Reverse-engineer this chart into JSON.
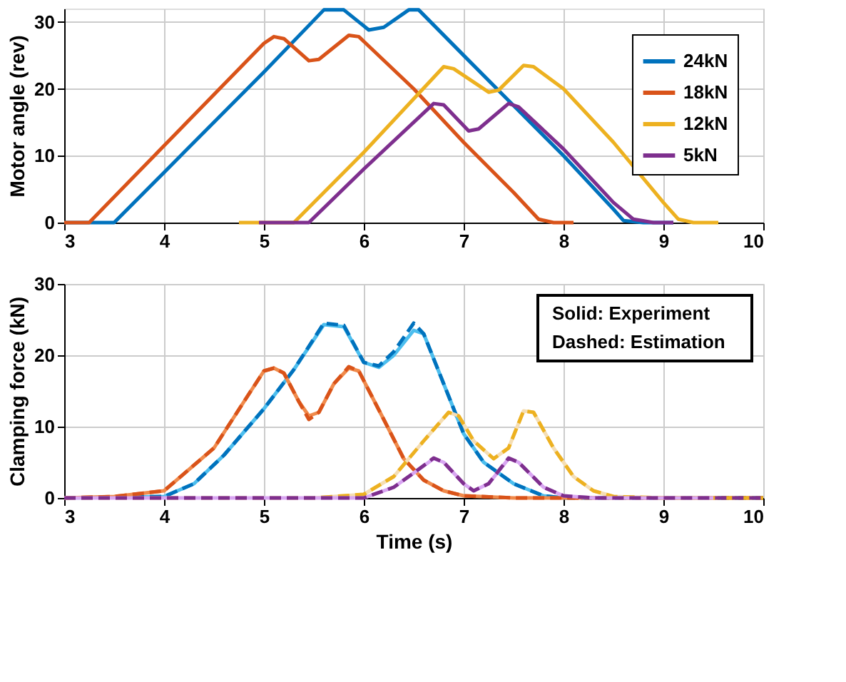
{
  "chart_data": [
    {
      "type": "line",
      "ylabel": "Motor angle (rev)",
      "xlim": [
        3,
        10
      ],
      "xticks": [
        3,
        4,
        5,
        6,
        7,
        8,
        9,
        10
      ],
      "ylim": [
        0,
        32
      ],
      "yticks": [
        0,
        10,
        20,
        30
      ],
      "grid": true,
      "legend": "top right",
      "marker": "none",
      "series": [
        {
          "name": "24kN",
          "color": "#0072bd",
          "line_style": "solid",
          "x": [
            3,
            3.5,
            4,
            5,
            5.6,
            5.8,
            6.05,
            6.2,
            6.45,
            6.55,
            7,
            7.5,
            8,
            8.5,
            8.6,
            8.8,
            9.1
          ],
          "values": [
            0,
            0,
            7.5,
            22.5,
            31.8,
            31.8,
            28.8,
            29.2,
            31.8,
            31.8,
            25,
            17.5,
            10,
            2,
            0.3,
            0,
            0
          ]
        },
        {
          "name": "18kN",
          "color": "#d95319",
          "line_style": "solid",
          "x": [
            3,
            3.25,
            4,
            5,
            5.1,
            5.2,
            5.45,
            5.55,
            5.85,
            5.95,
            6.5,
            7,
            7.5,
            7.75,
            7.9,
            8.1
          ],
          "values": [
            0,
            0,
            11.5,
            26.8,
            27.8,
            27.5,
            24.2,
            24.4,
            28,
            27.8,
            20,
            12,
            4.5,
            0.5,
            0,
            0
          ]
        },
        {
          "name": "12kN",
          "color": "#edb120",
          "line_style": "solid",
          "x": [
            4.75,
            5.3,
            6,
            6.8,
            6.9,
            7.25,
            7.35,
            7.6,
            7.7,
            8,
            8.5,
            9,
            9.15,
            9.3,
            9.55
          ],
          "values": [
            0,
            0,
            10.5,
            23.3,
            23,
            19.5,
            19.8,
            23.5,
            23.3,
            20,
            12,
            3,
            0.5,
            0,
            0
          ]
        },
        {
          "name": "5kN",
          "color": "#7e2f8e",
          "line_style": "solid",
          "x": [
            4.95,
            5.45,
            6,
            6.7,
            6.8,
            7.05,
            7.15,
            7.45,
            7.55,
            8,
            8.5,
            8.7,
            8.9,
            9.1
          ],
          "values": [
            0,
            0,
            8,
            17.8,
            17.6,
            13.7,
            14,
            17.8,
            17.3,
            11,
            3,
            0.5,
            0,
            0
          ]
        }
      ]
    },
    {
      "type": "line",
      "xlabel": "Time (s)",
      "ylabel": "Clamping force (kN)",
      "xlim": [
        3,
        10
      ],
      "xticks": [
        3,
        4,
        5,
        6,
        7,
        8,
        9,
        10
      ],
      "ylim": [
        0,
        30
      ],
      "yticks": [
        0,
        10,
        20,
        30
      ],
      "grid": true,
      "marker": "none",
      "annotations": [
        "Solid: Experiment",
        "Dashed: Estimation"
      ],
      "series": [
        {
          "color": "#4dbeee",
          "line_style": "solid",
          "x": [
            3,
            4,
            4.3,
            4.6,
            5,
            5.3,
            5.6,
            5.8,
            6,
            6.15,
            6.3,
            6.5,
            6.6,
            6.8,
            7,
            7.2,
            7.5,
            7.8,
            8
          ],
          "values": [
            0,
            0.2,
            2,
            6,
            12.5,
            18,
            24.3,
            24,
            19,
            18.3,
            20,
            23.5,
            23,
            16,
            9,
            5,
            2,
            0.3,
            0
          ]
        },
        {
          "color": "#0072bd",
          "line_style": "dashed",
          "x": [
            3,
            4,
            4.3,
            4.6,
            5,
            5.3,
            5.6,
            5.8,
            6,
            6.15,
            6.3,
            6.5,
            6.6,
            6.8,
            7,
            7.2,
            7.5,
            7.8,
            8,
            10
          ],
          "values": [
            0,
            0.2,
            2,
            6,
            12.5,
            18,
            24.5,
            24.2,
            19,
            18.5,
            20.5,
            24.5,
            23,
            16,
            9,
            5,
            2,
            0.3,
            0,
            0
          ]
        },
        {
          "color": "#f08a4b",
          "line_style": "solid",
          "x": [
            3,
            3.5,
            4,
            4.5,
            4.8,
            5,
            5.1,
            5.2,
            5.35,
            5.45,
            5.55,
            5.7,
            5.85,
            5.95,
            6.2,
            6.4,
            6.6,
            6.8,
            7,
            7.5,
            8.2
          ],
          "values": [
            0,
            0.2,
            1,
            7,
            13.5,
            17.8,
            18.2,
            17.5,
            13.5,
            11.5,
            12,
            16,
            18.2,
            17.8,
            11,
            5.5,
            2.5,
            1,
            0.3,
            0,
            0
          ]
        },
        {
          "color": "#d95319",
          "line_style": "dashed",
          "x": [
            3,
            3.5,
            4,
            4.5,
            4.8,
            5,
            5.1,
            5.2,
            5.35,
            5.45,
            5.55,
            5.7,
            5.85,
            5.95,
            6.2,
            6.4,
            6.6,
            6.8,
            7,
            7.5,
            10
          ],
          "values": [
            0,
            0.2,
            1,
            7,
            13.5,
            17.8,
            18.2,
            17.5,
            13.5,
            11,
            12,
            16,
            18.4,
            17.8,
            11,
            5.5,
            2.5,
            1,
            0.3,
            0,
            0
          ]
        },
        {
          "color": "#f5deb3",
          "line_style": "solid",
          "x": [
            5.5,
            6,
            6.3,
            6.6,
            6.85,
            6.95,
            7.1,
            7.3,
            7.45,
            7.6,
            7.7,
            7.9,
            8.1,
            8.3,
            8.5,
            9,
            9.5
          ],
          "values": [
            0,
            0.5,
            3,
            8,
            12,
            11.5,
            8,
            5.5,
            7,
            12.2,
            12,
            7,
            3,
            1,
            0.2,
            0,
            0
          ]
        },
        {
          "color": "#edb120",
          "line_style": "dashed",
          "x": [
            3,
            5.5,
            6,
            6.3,
            6.6,
            6.85,
            6.95,
            7.1,
            7.3,
            7.45,
            7.6,
            7.7,
            7.9,
            8.1,
            8.3,
            8.5,
            9,
            10
          ],
          "values": [
            0,
            0,
            0.5,
            3,
            8,
            12,
            11.5,
            8,
            5.5,
            7,
            12.2,
            12,
            7,
            3,
            1,
            0.2,
            0,
            0
          ]
        },
        {
          "color": "#d9a6f2",
          "line_style": "solid",
          "x": [
            3,
            6,
            6.3,
            6.5,
            6.7,
            6.8,
            7,
            7.1,
            7.25,
            7.45,
            7.55,
            7.8,
            8,
            8.3,
            9.5
          ],
          "values": [
            0,
            0,
            1.5,
            3.5,
            5.5,
            5,
            2,
            1,
            2,
            5.5,
            5,
            1.5,
            0.3,
            0,
            0
          ]
        },
        {
          "color": "#7e2f8e",
          "line_style": "dashed",
          "x": [
            3,
            6,
            6.3,
            6.5,
            6.7,
            6.8,
            7,
            7.1,
            7.25,
            7.45,
            7.55,
            7.8,
            8,
            8.3,
            10
          ],
          "values": [
            0,
            0,
            1.5,
            3.5,
            5.6,
            5,
            2,
            1,
            2,
            5.6,
            5,
            1.5,
            0.3,
            0,
            0
          ]
        }
      ]
    }
  ]
}
